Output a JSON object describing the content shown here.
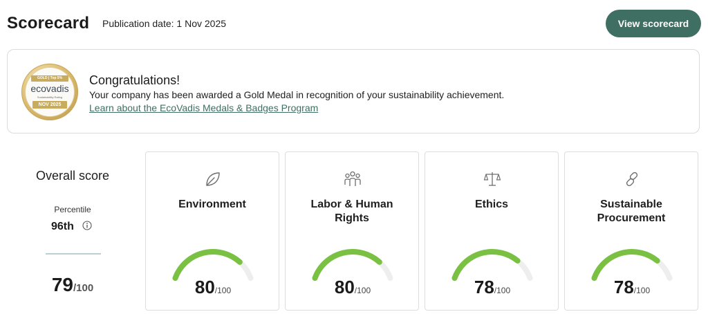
{
  "header": {
    "title": "Scorecard",
    "publication_date": "Publication date: 1 Nov 2025",
    "view_button": "View scorecard"
  },
  "banner": {
    "medal": {
      "tag": "GOLD | Top 5%",
      "brand": "ecovadis",
      "subtitle": "Sustainability Rating",
      "date": "NOV 2025"
    },
    "heading": "Congratulations!",
    "message": "Your company has been awarded a Gold Medal in recognition of your sustainability achievement.",
    "link": "Learn about the EcoVadis Medals & Badges Program"
  },
  "overall": {
    "title": "Overall score",
    "percentile_label": "Percentile",
    "percentile_value": "96th",
    "score": "79",
    "denominator": "/100"
  },
  "themes": [
    {
      "title": "Environment",
      "icon": "leaf-icon",
      "score": 80,
      "score_text": "80",
      "denominator": "/100"
    },
    {
      "title": "Labor & Human Rights",
      "icon": "people-icon",
      "score": 80,
      "score_text": "80",
      "denominator": "/100"
    },
    {
      "title": "Ethics",
      "icon": "scales-icon",
      "score": 78,
      "score_text": "78",
      "denominator": "/100"
    },
    {
      "title": "Sustainable Procurement",
      "icon": "link-icon",
      "score": 78,
      "score_text": "78",
      "denominator": "/100"
    }
  ],
  "colors": {
    "accent": "#3f6e62",
    "gauge_fill": "#7ac143",
    "gauge_track": "#eeeeee",
    "medal_gold": "#c9ab5e"
  }
}
